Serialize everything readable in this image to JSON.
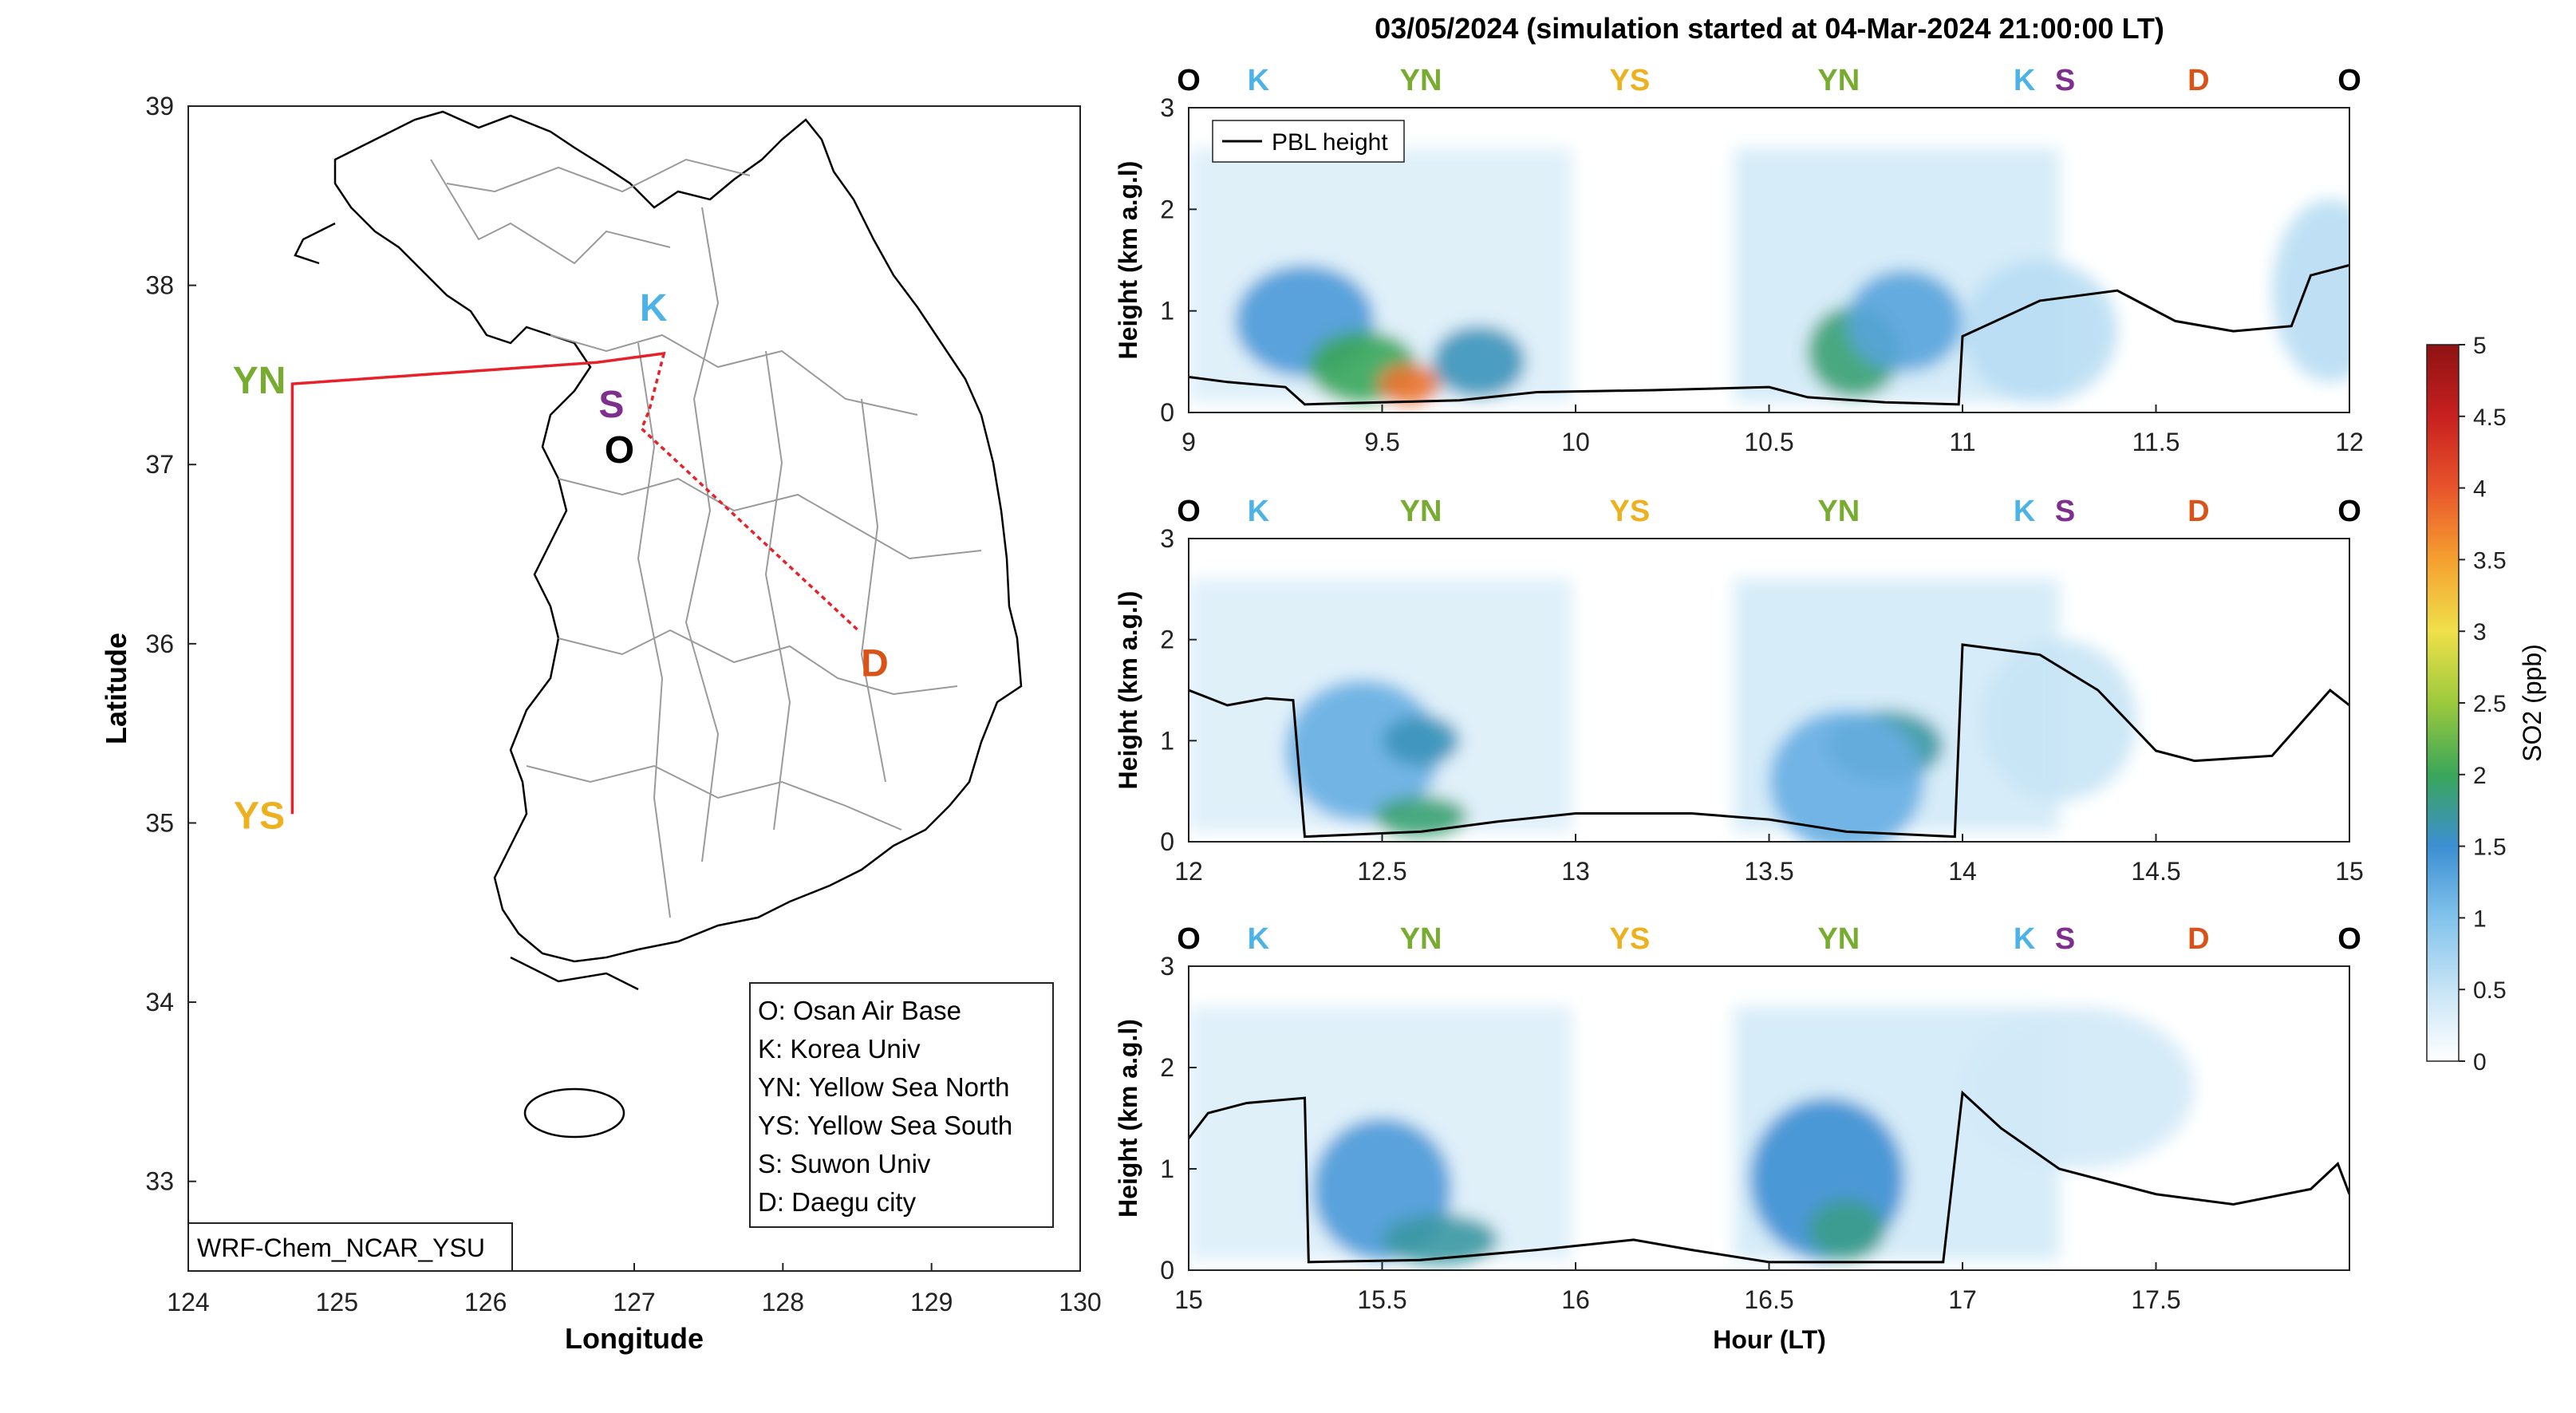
{
  "title": "03/05/2024 (simulation started at 04-Mar-2024 21:00:00 LT)",
  "map": {
    "xlabel": "Longitude",
    "ylabel": "Latitude",
    "xticks": [
      "124",
      "125",
      "126",
      "127",
      "128",
      "129",
      "130"
    ],
    "yticks": [
      "33",
      "34",
      "35",
      "36",
      "37",
      "38",
      "39"
    ],
    "xlim": [
      124,
      130
    ],
    "ylim": [
      32.5,
      39
    ],
    "model_label": "WRF-Chem_NCAR_YSU",
    "track_color": "#e8202a",
    "sites": [
      {
        "code": "O",
        "lon": 126.9,
        "lat": 37.1,
        "color": "#000000"
      },
      {
        "code": "K",
        "lon": 127.13,
        "lat": 37.75,
        "color": "#4db3e6"
      },
      {
        "code": "S",
        "lon": 126.9,
        "lat": 37.3,
        "color": "#7e2f8e"
      },
      {
        "code": "YN",
        "lon": 124.8,
        "lat": 37.46,
        "color": "#77ac30"
      },
      {
        "code": "YS",
        "lon": 124.8,
        "lat": 35.03,
        "color": "#edb120"
      },
      {
        "code": "D",
        "lon": 128.5,
        "lat": 35.9,
        "color": "#d95319"
      }
    ],
    "track": [
      [
        127.2,
        37.62
      ],
      [
        126.75,
        37.57
      ],
      [
        124.7,
        37.45
      ],
      [
        124.7,
        35.05
      ],
      [
        124.7,
        37.45
      ],
      [
        126.75,
        37.57
      ],
      [
        127.2,
        37.62
      ],
      [
        127.1,
        37.3
      ],
      [
        127.05,
        37.2
      ],
      [
        128.5,
        36.08
      ]
    ],
    "legend": [
      "O: Osan Air Base",
      "K: Korea Univ",
      "YN: Yellow Sea North",
      "YS: Yellow Sea South",
      "S: Suwon Univ",
      "D: Daegu city"
    ]
  },
  "panels_common": {
    "ylabel": "Height (km a.g.l)",
    "yticks": [
      "0",
      "1",
      "2",
      "3"
    ],
    "ylim": [
      0,
      3
    ],
    "xlabel": "Hour (LT)",
    "site_labels": [
      {
        "code": "O",
        "frac": 0.0,
        "color": "#000000"
      },
      {
        "code": "K",
        "frac": 0.06,
        "color": "#4db3e6"
      },
      {
        "code": "YN",
        "frac": 0.2,
        "color": "#77ac30"
      },
      {
        "code": "YS",
        "frac": 0.38,
        "color": "#edb120"
      },
      {
        "code": "YN",
        "frac": 0.56,
        "color": "#77ac30"
      },
      {
        "code": "K",
        "frac": 0.72,
        "color": "#4db3e6"
      },
      {
        "code": "S",
        "frac": 0.755,
        "color": "#7e2f8e"
      },
      {
        "code": "D",
        "frac": 0.87,
        "color": "#d95319"
      },
      {
        "code": "O",
        "frac": 1.0,
        "color": "#000000"
      }
    ],
    "legend_label": "PBL height"
  },
  "colorbar": {
    "label": "SO2 (ppb)",
    "ticks": [
      "0",
      "0.5",
      "1",
      "1.5",
      "2",
      "2.5",
      "3",
      "3.5",
      "4",
      "4.5",
      "5"
    ],
    "range": [
      0,
      5
    ]
  },
  "chart_data": [
    {
      "type": "heatmap",
      "panel": 1,
      "xlim": [
        9,
        12
      ],
      "ylim": [
        0,
        3
      ],
      "xticks": [
        "9",
        "9.5",
        "10",
        "10.5",
        "11",
        "11.5",
        "12"
      ],
      "pbl_height": [
        [
          9,
          0.35
        ],
        [
          9.1,
          0.3
        ],
        [
          9.25,
          0.25
        ],
        [
          9.3,
          0.08
        ],
        [
          9.5,
          0.1
        ],
        [
          9.7,
          0.12
        ],
        [
          9.9,
          0.2
        ],
        [
          10.2,
          0.22
        ],
        [
          10.5,
          0.25
        ],
        [
          10.6,
          0.15
        ],
        [
          10.8,
          0.1
        ],
        [
          10.99,
          0.08
        ],
        [
          11.0,
          0.75
        ],
        [
          11.2,
          1.1
        ],
        [
          11.4,
          1.2
        ],
        [
          11.55,
          0.9
        ],
        [
          11.7,
          0.8
        ],
        [
          11.85,
          0.85
        ],
        [
          11.9,
          1.35
        ],
        [
          12,
          1.45
        ]
      ],
      "so2_blobs": [
        {
          "x": 9.3,
          "y": 0.9,
          "sx": 0.18,
          "sy": 0.55,
          "v": 1.4
        },
        {
          "x": 9.45,
          "y": 0.45,
          "sx": 0.14,
          "sy": 0.35,
          "v": 2.0
        },
        {
          "x": 9.57,
          "y": 0.28,
          "sx": 0.08,
          "sy": 0.2,
          "v": 3.8
        },
        {
          "x": 9.75,
          "y": 0.5,
          "sx": 0.12,
          "sy": 0.35,
          "v": 1.6
        },
        {
          "x": 10.72,
          "y": 0.6,
          "sx": 0.12,
          "sy": 0.45,
          "v": 1.9
        },
        {
          "x": 10.85,
          "y": 0.9,
          "sx": 0.15,
          "sy": 0.5,
          "v": 1.3
        },
        {
          "x": 11.2,
          "y": 0.8,
          "sx": 0.2,
          "sy": 0.7,
          "v": 0.6
        },
        {
          "x": 11.95,
          "y": 1.2,
          "sx": 0.15,
          "sy": 0.9,
          "v": 0.6
        }
      ]
    },
    {
      "type": "heatmap",
      "panel": 2,
      "xlim": [
        12,
        15
      ],
      "ylim": [
        0,
        3
      ],
      "xticks": [
        "12",
        "12.5",
        "13",
        "13.5",
        "14",
        "14.5",
        "15"
      ],
      "pbl_height": [
        [
          12,
          1.5
        ],
        [
          12.1,
          1.35
        ],
        [
          12.2,
          1.42
        ],
        [
          12.27,
          1.4
        ],
        [
          12.3,
          0.05
        ],
        [
          12.6,
          0.1
        ],
        [
          12.8,
          0.2
        ],
        [
          13.0,
          0.28
        ],
        [
          13.3,
          0.28
        ],
        [
          13.5,
          0.22
        ],
        [
          13.7,
          0.1
        ],
        [
          13.98,
          0.05
        ],
        [
          14.0,
          1.95
        ],
        [
          14.2,
          1.85
        ],
        [
          14.35,
          1.5
        ],
        [
          14.5,
          0.9
        ],
        [
          14.6,
          0.8
        ],
        [
          14.8,
          0.85
        ],
        [
          14.95,
          1.5
        ],
        [
          15,
          1.35
        ]
      ],
      "so2_blobs": [
        {
          "x": 12.45,
          "y": 0.9,
          "sx": 0.2,
          "sy": 0.7,
          "v": 1.2
        },
        {
          "x": 12.6,
          "y": 0.25,
          "sx": 0.12,
          "sy": 0.2,
          "v": 1.9
        },
        {
          "x": 12.6,
          "y": 1.0,
          "sx": 0.1,
          "sy": 0.25,
          "v": 1.6
        },
        {
          "x": 13.8,
          "y": 0.95,
          "sx": 0.15,
          "sy": 0.35,
          "v": 1.7
        },
        {
          "x": 13.7,
          "y": 0.6,
          "sx": 0.2,
          "sy": 0.7,
          "v": 1.2
        },
        {
          "x": 14.25,
          "y": 1.2,
          "sx": 0.2,
          "sy": 0.8,
          "v": 0.5
        }
      ]
    },
    {
      "type": "heatmap",
      "panel": 3,
      "xlim": [
        15,
        18
      ],
      "ylim": [
        0,
        3
      ],
      "xticks": [
        "15",
        "15.5",
        "16",
        "16.5",
        "17",
        "17.5"
      ],
      "pbl_height": [
        [
          15,
          1.3
        ],
        [
          15.05,
          1.55
        ],
        [
          15.15,
          1.65
        ],
        [
          15.3,
          1.7
        ],
        [
          15.31,
          0.08
        ],
        [
          15.6,
          0.1
        ],
        [
          15.9,
          0.2
        ],
        [
          16.15,
          0.3
        ],
        [
          16.3,
          0.2
        ],
        [
          16.5,
          0.08
        ],
        [
          16.95,
          0.08
        ],
        [
          17.0,
          1.75
        ],
        [
          17.1,
          1.4
        ],
        [
          17.25,
          1.0
        ],
        [
          17.5,
          0.75
        ],
        [
          17.7,
          0.65
        ],
        [
          17.9,
          0.8
        ],
        [
          17.97,
          1.05
        ],
        [
          18,
          0.75
        ]
      ],
      "so2_blobs": [
        {
          "x": 15.5,
          "y": 0.8,
          "sx": 0.18,
          "sy": 0.7,
          "v": 1.4
        },
        {
          "x": 15.65,
          "y": 0.3,
          "sx": 0.15,
          "sy": 0.25,
          "v": 1.7
        },
        {
          "x": 16.65,
          "y": 0.9,
          "sx": 0.2,
          "sy": 0.8,
          "v": 1.5
        },
        {
          "x": 16.7,
          "y": 0.4,
          "sx": 0.1,
          "sy": 0.3,
          "v": 1.8
        },
        {
          "x": 17.3,
          "y": 1.8,
          "sx": 0.3,
          "sy": 0.8,
          "v": 0.4
        }
      ]
    }
  ]
}
